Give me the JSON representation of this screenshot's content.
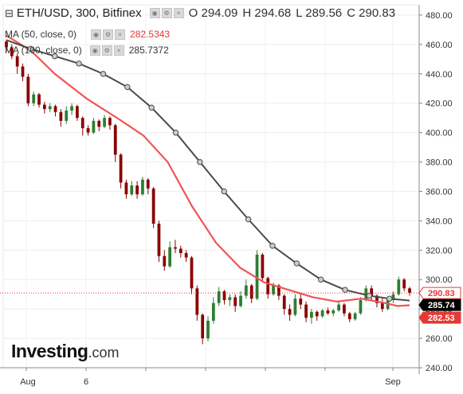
{
  "header": {
    "symbol_label": "ETH/USD, 300, Bitfinex",
    "open_label": "O",
    "open_value": "294.09",
    "high_label": "H",
    "high_value": "294.68",
    "low_label": "L",
    "low_value": "289.56",
    "close_label": "C",
    "close_value": "290.83"
  },
  "legend": {
    "ma50": {
      "label": "MA (50, close, 0)",
      "value": "282.5343",
      "color": "#e53935"
    },
    "ma100": {
      "label": "MA (100, close, 0)",
      "value": "285.7372",
      "color": "#555555"
    }
  },
  "logo": {
    "main": "Investing",
    "suffix": ".com"
  },
  "colors": {
    "up_candle": "#2e7d32",
    "down_candle": "#8b0000",
    "ma50": "#f05454",
    "ma100": "#4a4a4a",
    "price_line": "#e53935"
  },
  "icons": [
    "collapse-icon",
    "visibility-icon",
    "settings-icon",
    "close-icon"
  ],
  "chart_data": {
    "type": "candlestick",
    "title": "ETH/USD, 300, Bitfinex",
    "y_ticks": [
      "240.00",
      "260.00",
      "280.00",
      "300.00",
      "320.00",
      "340.00",
      "360.00",
      "380.00",
      "400.00",
      "420.00",
      "440.00",
      "460.00",
      "480.00"
    ],
    "x_ticks": [
      "Aug",
      "6",
      "Sep"
    ],
    "ylim": [
      240,
      487
    ],
    "price_labels": [
      {
        "text": "290.83",
        "value": 290.83,
        "kind": "last-price"
      },
      {
        "text": "285.74",
        "value": 285.74,
        "kind": "ma100"
      },
      {
        "text": "282.53",
        "value": 282.53,
        "kind": "ma50"
      }
    ],
    "candles_ohlc": [
      [
        462,
        463,
        455,
        458
      ],
      [
        458,
        460,
        450,
        452
      ],
      [
        452,
        454,
        440,
        445
      ],
      [
        445,
        447,
        435,
        438
      ],
      [
        438,
        440,
        418,
        420
      ],
      [
        420,
        428,
        418,
        426
      ],
      [
        426,
        427,
        417,
        419
      ],
      [
        419,
        421,
        413,
        416
      ],
      [
        416,
        420,
        414,
        418
      ],
      [
        418,
        419,
        411,
        414
      ],
      [
        414,
        416,
        404,
        408
      ],
      [
        408,
        418,
        406,
        415
      ],
      [
        415,
        420,
        412,
        418
      ],
      [
        418,
        419,
        408,
        410
      ],
      [
        410,
        411,
        398,
        403
      ],
      [
        403,
        405,
        398,
        400
      ],
      [
        400,
        410,
        399,
        408
      ],
      [
        408,
        409,
        401,
        404
      ],
      [
        404,
        412,
        403,
        410
      ],
      [
        410,
        411,
        402,
        405
      ],
      [
        405,
        406,
        380,
        385
      ],
      [
        385,
        386,
        362,
        366
      ],
      [
        366,
        368,
        355,
        358
      ],
      [
        358,
        367,
        357,
        364
      ],
      [
        364,
        367,
        355,
        358
      ],
      [
        358,
        370,
        357,
        368
      ],
      [
        368,
        369,
        358,
        362
      ],
      [
        362,
        363,
        335,
        338
      ],
      [
        338,
        340,
        312,
        316
      ],
      [
        316,
        320,
        306,
        309
      ],
      [
        309,
        326,
        308,
        322
      ],
      [
        322,
        327,
        318,
        321
      ],
      [
        321,
        323,
        315,
        318
      ],
      [
        318,
        320,
        312,
        315
      ],
      [
        315,
        316,
        290,
        294
      ],
      [
        294,
        296,
        272,
        276
      ],
      [
        276,
        277,
        256,
        260
      ],
      [
        260,
        275,
        258,
        272
      ],
      [
        272,
        288,
        270,
        284
      ],
      [
        284,
        295,
        282,
        292
      ],
      [
        292,
        293,
        283,
        286
      ],
      [
        286,
        290,
        282,
        288
      ],
      [
        288,
        290,
        278,
        282
      ],
      [
        282,
        292,
        281,
        289
      ],
      [
        289,
        300,
        287,
        296
      ],
      [
        296,
        297,
        284,
        287
      ],
      [
        287,
        320,
        286,
        317
      ],
      [
        317,
        318,
        298,
        301
      ],
      [
        301,
        302,
        287,
        290
      ],
      [
        290,
        298,
        289,
        296
      ],
      [
        296,
        297,
        286,
        289
      ],
      [
        289,
        290,
        276,
        280
      ],
      [
        280,
        283,
        272,
        276
      ],
      [
        276,
        290,
        275,
        287
      ],
      [
        287,
        291,
        280,
        283
      ],
      [
        283,
        285,
        271,
        274
      ],
      [
        274,
        280,
        270,
        278
      ],
      [
        278,
        279,
        272,
        275
      ],
      [
        275,
        280,
        274,
        279
      ],
      [
        279,
        281,
        276,
        277
      ],
      [
        277,
        280,
        275,
        279
      ],
      [
        279,
        285,
        278,
        283
      ],
      [
        283,
        284,
        275,
        277
      ],
      [
        277,
        278,
        271,
        273
      ],
      [
        273,
        278,
        272,
        277
      ],
      [
        277,
        288,
        276,
        286
      ],
      [
        286,
        296,
        285,
        294
      ],
      [
        294,
        296,
        286,
        289
      ],
      [
        289,
        290,
        281,
        284
      ],
      [
        284,
        287,
        278,
        280
      ],
      [
        280,
        288,
        279,
        286
      ],
      [
        286,
        292,
        284,
        290
      ],
      [
        290,
        302,
        289,
        300
      ],
      [
        300,
        301,
        292,
        294
      ],
      [
        294,
        295,
        289,
        291
      ]
    ],
    "series": [
      {
        "name": "MA (50, close, 0)",
        "points": [
          [
            0,
            466
          ],
          [
            0.06,
            456
          ],
          [
            0.12,
            440
          ],
          [
            0.2,
            423
          ],
          [
            0.28,
            409
          ],
          [
            0.34,
            398
          ],
          [
            0.4,
            380
          ],
          [
            0.46,
            350
          ],
          [
            0.52,
            325
          ],
          [
            0.58,
            308
          ],
          [
            0.64,
            298
          ],
          [
            0.7,
            293
          ],
          [
            0.76,
            288
          ],
          [
            0.82,
            285
          ],
          [
            0.88,
            287
          ],
          [
            0.94,
            284
          ],
          [
            0.97,
            282
          ],
          [
            1.0,
            282.53
          ]
        ]
      },
      {
        "name": "MA (100, close, 0)",
        "points": [
          [
            0,
            463
          ],
          [
            0.06,
            457
          ],
          [
            0.12,
            452
          ],
          [
            0.18,
            447
          ],
          [
            0.24,
            440
          ],
          [
            0.3,
            431
          ],
          [
            0.36,
            417
          ],
          [
            0.42,
            400
          ],
          [
            0.48,
            380
          ],
          [
            0.54,
            360
          ],
          [
            0.6,
            341
          ],
          [
            0.66,
            323
          ],
          [
            0.72,
            311
          ],
          [
            0.78,
            300
          ],
          [
            0.84,
            293
          ],
          [
            0.9,
            289
          ],
          [
            0.95,
            287
          ],
          [
            1.0,
            285.74
          ]
        ]
      }
    ]
  }
}
